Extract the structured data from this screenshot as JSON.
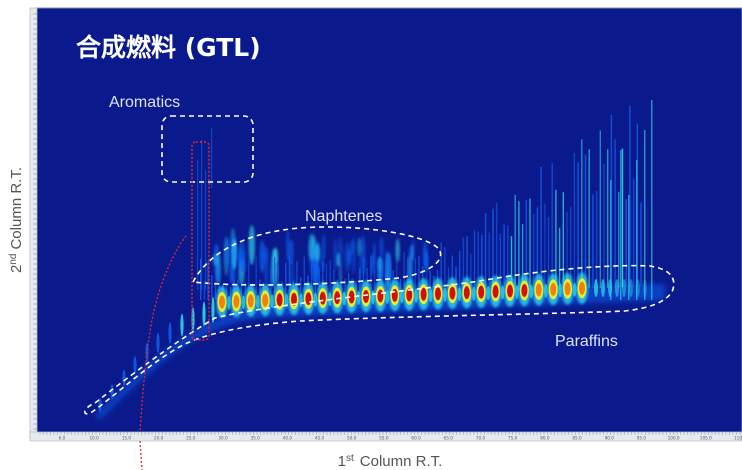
{
  "chart_data": {
    "type": "heatmap",
    "title": "合成燃料 (GTL)",
    "xlabel": "Column R.T.",
    "xlabel_prefix": "1",
    "xlabel_superscript": "st",
    "ylabel": "Column R.T.",
    "ylabel_prefix": "2",
    "ylabel_superscript": "nd",
    "xlim": [
      6.0,
      110.0
    ],
    "x_ticks": [
      "6.0",
      "10.0",
      "15.0",
      "20.0",
      "25.0",
      "30.0",
      "35.0",
      "40.0",
      "45.0",
      "50.0",
      "55.0",
      "60.0",
      "65.0",
      "70.0",
      "75.0",
      "80.0",
      "85.0",
      "90.0",
      "95.0",
      "100.0",
      "105.0",
      "110"
    ],
    "regions": [
      {
        "name": "Aromatics",
        "shape": "rounded-rectangle",
        "style": "dashed",
        "color": "#ffffff"
      },
      {
        "name": "Naphtenes",
        "shape": "ellipse",
        "style": "dashed",
        "color": "#ffffff"
      },
      {
        "name": "Paraffins",
        "shape": "band",
        "style": "dashed",
        "color": "#ffffff"
      }
    ],
    "highlight": {
      "shape": "rounded-rectangle",
      "style": "dotted",
      "color": "#e8272a"
    },
    "colormap": [
      "#0a1a8c",
      "#1060f0",
      "#30e0f0",
      "#f0f020",
      "#f08010",
      "#d01010"
    ],
    "background_color": "#0a1a8c",
    "grid": false
  }
}
